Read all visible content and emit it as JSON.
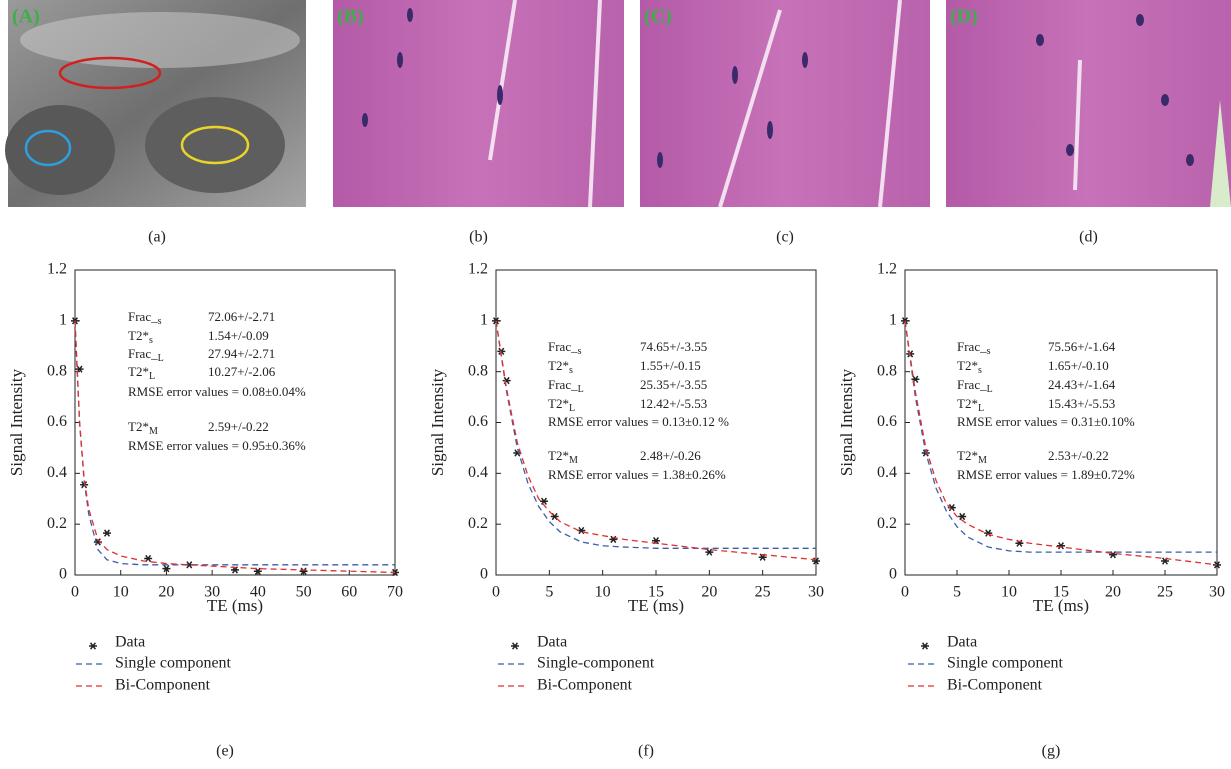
{
  "panels": {
    "images": [
      {
        "label": "(A)",
        "caption": "(a)"
      },
      {
        "label": "(B)",
        "caption": "(b)"
      },
      {
        "label": "(C)",
        "caption": "(c)"
      },
      {
        "label": "(D)",
        "caption": "(d)"
      }
    ],
    "chart_captions": [
      "(e)",
      "(f)",
      "(g)"
    ]
  },
  "chart_data": [
    {
      "type": "line",
      "xlabel": "TE (ms)",
      "ylabel": "Signal Intensity",
      "xlim": [
        0,
        70
      ],
      "xticks": [
        0,
        10,
        20,
        30,
        40,
        50,
        60,
        70
      ],
      "ylim": [
        0,
        1.2
      ],
      "yticks": [
        0,
        0.2,
        0.4,
        0.6,
        0.8,
        1,
        1.2
      ],
      "series": [
        {
          "name": "Data",
          "color": "#222222",
          "style": "markers",
          "x": [
            0,
            1,
            2,
            5,
            7,
            16,
            20,
            25,
            35,
            40,
            50,
            70
          ],
          "values": [
            1,
            0.81,
            0.355,
            0.13,
            0.165,
            0.065,
            0.025,
            0.04,
            0.02,
            0.015,
            0.015,
            0.01
          ]
        },
        {
          "name": "Single component",
          "color": "#3a5fa8",
          "style": "dashed",
          "x": [
            0,
            1,
            2,
            3,
            5,
            7,
            10,
            15,
            20,
            30,
            40,
            50,
            60,
            70
          ],
          "values": [
            1,
            0.6,
            0.37,
            0.24,
            0.1,
            0.06,
            0.045,
            0.04,
            0.04,
            0.04,
            0.04,
            0.04,
            0.04,
            0.04
          ]
        },
        {
          "name": "Bi-Component",
          "color": "#e03030",
          "style": "dashed",
          "x": [
            0,
            1,
            2,
            3,
            5,
            7,
            10,
            15,
            20,
            30,
            40,
            50,
            60,
            70
          ],
          "values": [
            1,
            0.6,
            0.38,
            0.26,
            0.14,
            0.1,
            0.075,
            0.055,
            0.045,
            0.035,
            0.025,
            0.02,
            0.015,
            0.01
          ]
        }
      ],
      "annotations": [
        {
          "label": "Frac_",
          "sub": "s",
          "value": "72.06+/-2.71"
        },
        {
          "label": "T2*",
          "sub": "s",
          "value": "1.54+/-0.09"
        },
        {
          "label": "Frac_",
          "sub": "L",
          "value": "27.94+/-2.71"
        },
        {
          "label": "T2*",
          "sub": "L",
          "value": "10.27+/-2.06"
        },
        {
          "text": "RMSE error values = 0.08±0.04%"
        },
        {
          "label": "T2*",
          "sub": "M",
          "value": "2.59+/-0.22"
        },
        {
          "text": "RMSE error values = 0.95±0.36%"
        }
      ]
    },
    {
      "type": "line",
      "xlabel": "TE (ms)",
      "ylabel": "Signal Intensity",
      "xlim": [
        0,
        30
      ],
      "xticks": [
        0,
        5,
        10,
        15,
        20,
        25,
        30
      ],
      "ylim": [
        0,
        1.2
      ],
      "yticks": [
        0,
        0.2,
        0.4,
        0.6,
        0.8,
        1,
        1.2
      ],
      "series": [
        {
          "name": "Data",
          "color": "#222222",
          "style": "markers",
          "x": [
            0,
            0.5,
            1,
            2,
            4.5,
            5.5,
            8,
            11,
            15,
            20,
            25,
            30
          ],
          "values": [
            1,
            0.88,
            0.765,
            0.48,
            0.29,
            0.23,
            0.175,
            0.14,
            0.135,
            0.09,
            0.07,
            0.055
          ]
        },
        {
          "name": "Single-component",
          "color": "#3a5fa8",
          "style": "dashed",
          "x": [
            0,
            1,
            2,
            3,
            4,
            5,
            6,
            8,
            10,
            12,
            15,
            20,
            25,
            30
          ],
          "values": [
            1,
            0.72,
            0.5,
            0.36,
            0.27,
            0.21,
            0.17,
            0.13,
            0.115,
            0.11,
            0.105,
            0.105,
            0.105,
            0.105
          ]
        },
        {
          "name": "Bi-Component",
          "color": "#e03030",
          "style": "dashed",
          "x": [
            0,
            1,
            2,
            3,
            4,
            5,
            6,
            8,
            10,
            12,
            15,
            20,
            25,
            30
          ],
          "values": [
            1,
            0.73,
            0.52,
            0.39,
            0.3,
            0.25,
            0.21,
            0.17,
            0.155,
            0.14,
            0.125,
            0.1,
            0.08,
            0.06
          ]
        }
      ],
      "annotations": [
        {
          "label": "Frac_",
          "sub": "s",
          "value": "74.65+/-3.55"
        },
        {
          "label": "T2*",
          "sub": "s",
          "value": "1.55+/-0.15"
        },
        {
          "label": "Frac_",
          "sub": "L",
          "value": "25.35+/-3.55"
        },
        {
          "label": "T2*",
          "sub": "L",
          "value": "12.42+/-5.53"
        },
        {
          "text": "RMSE error values = 0.13±0.12 %"
        },
        {
          "label": "T2*",
          "sub": "M",
          "value": "2.48+/-0.26"
        },
        {
          "text": "RMSE error values = 1.38±0.26%"
        }
      ]
    },
    {
      "type": "line",
      "xlabel": "TE (ms)",
      "ylabel": "Signal Intensity",
      "xlim": [
        0,
        30
      ],
      "xticks": [
        0,
        5,
        10,
        15,
        20,
        25,
        30
      ],
      "ylim": [
        0,
        1.2
      ],
      "yticks": [
        0,
        0.2,
        0.4,
        0.6,
        0.8,
        1,
        1.2
      ],
      "series": [
        {
          "name": "Data",
          "color": "#222222",
          "style": "markers",
          "x": [
            0,
            0.5,
            1,
            2,
            4.5,
            5.5,
            8,
            11,
            15,
            20,
            25,
            30
          ],
          "values": [
            1,
            0.87,
            0.77,
            0.48,
            0.265,
            0.23,
            0.165,
            0.125,
            0.115,
            0.08,
            0.055,
            0.04
          ]
        },
        {
          "name": "Single component",
          "color": "#3a5fa8",
          "style": "dashed",
          "x": [
            0,
            1,
            2,
            3,
            4,
            5,
            6,
            8,
            10,
            12,
            15,
            20,
            25,
            30
          ],
          "values": [
            1,
            0.7,
            0.48,
            0.34,
            0.25,
            0.19,
            0.15,
            0.11,
            0.095,
            0.09,
            0.09,
            0.09,
            0.09,
            0.09
          ]
        },
        {
          "name": "Bi-Component",
          "color": "#e03030",
          "style": "dashed",
          "x": [
            0,
            1,
            2,
            3,
            4,
            5,
            6,
            8,
            10,
            12,
            15,
            20,
            25,
            30
          ],
          "values": [
            1,
            0.72,
            0.5,
            0.37,
            0.28,
            0.23,
            0.2,
            0.16,
            0.14,
            0.125,
            0.11,
            0.085,
            0.065,
            0.04
          ]
        }
      ],
      "annotations": [
        {
          "label": "Frac_",
          "sub": "s",
          "value": "75.56+/-1.64"
        },
        {
          "label": "T2*",
          "sub": "s",
          "value": "1.65+/-0.10"
        },
        {
          "label": "Frac_",
          "sub": "L",
          "value": "24.43+/-1.64"
        },
        {
          "label": "T2*",
          "sub": "L",
          "value": "15.43+/-5.53"
        },
        {
          "text": "RMSE error values = 0.31±0.10%"
        },
        {
          "label": "T2*",
          "sub": "M",
          "value": "2.53+/-0.22"
        },
        {
          "text": "RMSE error values = 1.89±0.72%"
        }
      ]
    }
  ]
}
